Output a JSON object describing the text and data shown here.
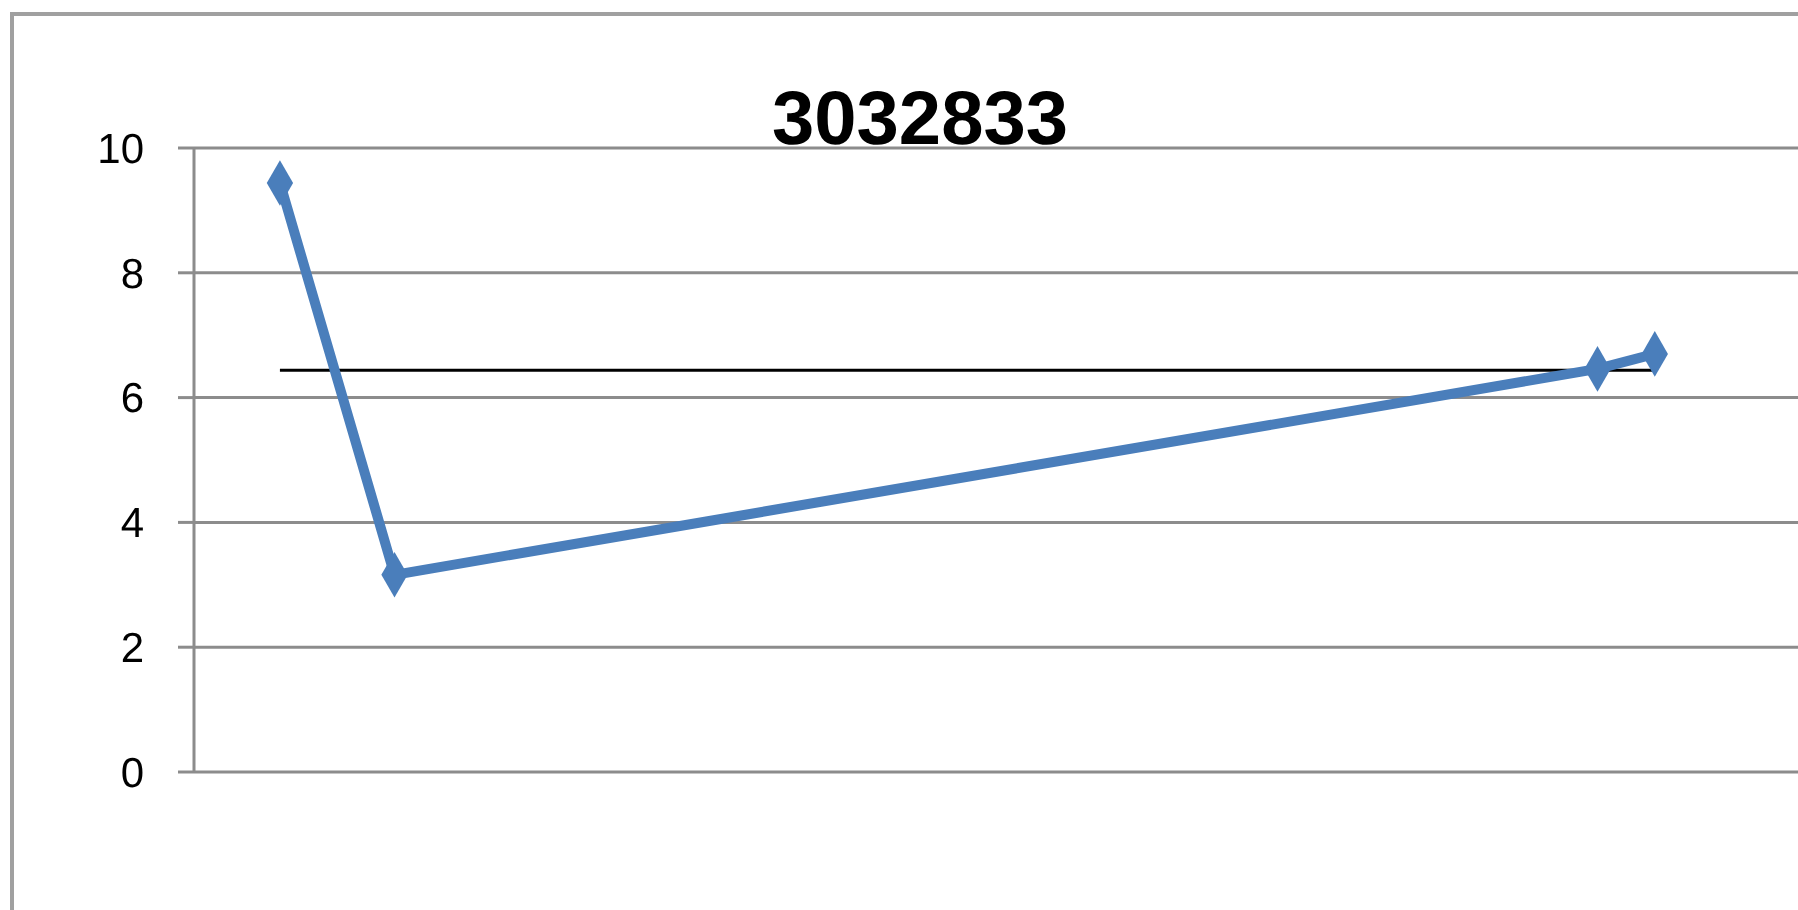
{
  "chart_data": {
    "type": "line",
    "title": "3032833",
    "categories": [
      null,
      null,
      null,
      null,
      null,
      null,
      null,
      null,
      null,
      null,
      null,
      null,
      null,
      null,
      null,
      null,
      null,
      null,
      null,
      null,
      null,
      null,
      null,
      null,
      null,
      null,
      null,
      null
    ],
    "series": [
      {
        "color": "#4a7ebb",
        "values": [
          null,
          9.44,
          null,
          3.16,
          null,
          null,
          null,
          null,
          null,
          null,
          null,
          null,
          null,
          null,
          null,
          null,
          null,
          null,
          null,
          null,
          null,
          null,
          null,
          null,
          6.46,
          6.7,
          null,
          null
        ]
      }
    ],
    "ylim": [
      0,
      10
    ],
    "yticks": [
      0,
      2,
      4,
      6,
      8,
      10
    ],
    "grid": "y",
    "marker": "diamond",
    "line_style": "solid",
    "ref_lines": [
      {
        "axis": "y",
        "value": 6.44,
        "color": "#000000"
      }
    ]
  }
}
